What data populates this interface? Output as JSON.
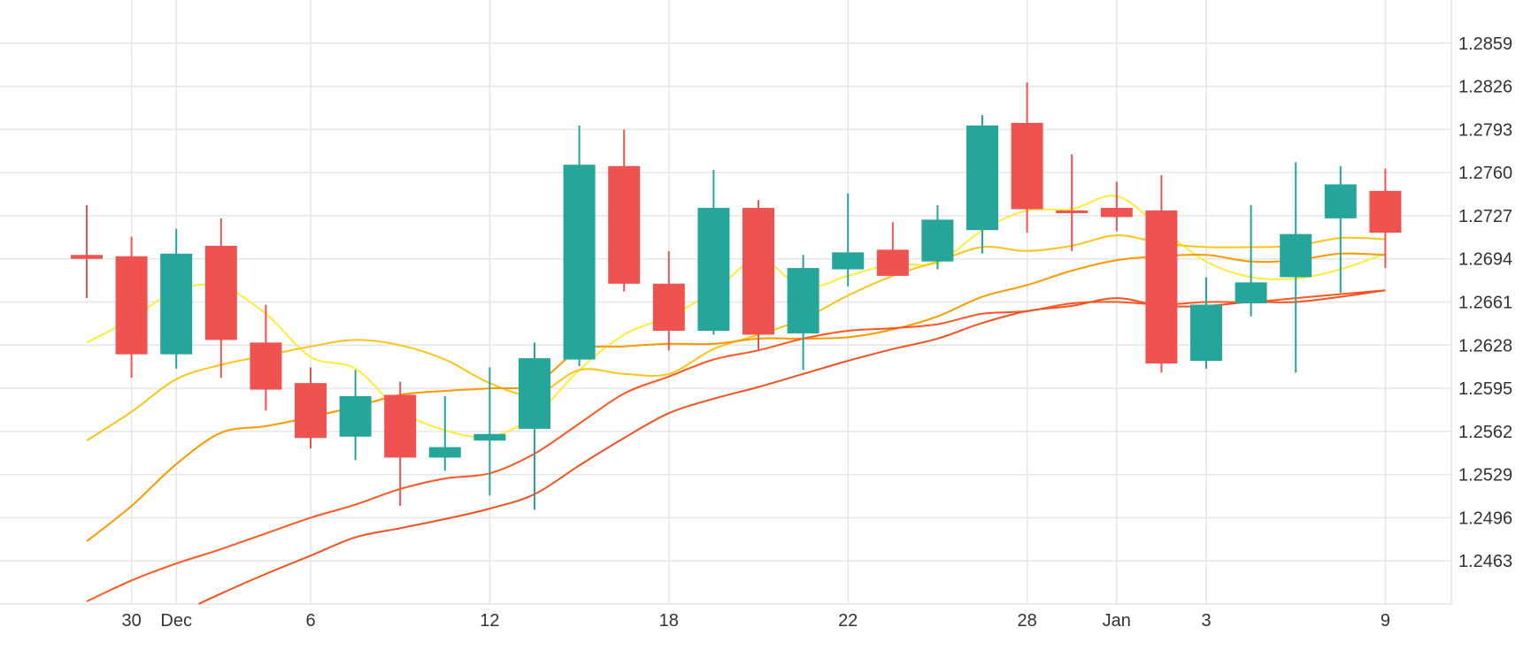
{
  "chart_data": {
    "type": "candlestick",
    "title": "",
    "xlabel": "",
    "ylabel": "",
    "ylim": [
      1.243,
      1.2892
    ],
    "yticks": [
      1.2463,
      1.2496,
      1.2529,
      1.2562,
      1.2595,
      1.2628,
      1.2661,
      1.2694,
      1.2727,
      1.276,
      1.2793,
      1.2826,
      1.2859
    ],
    "ytick_labels": [
      "1.2463",
      "1.2496",
      "1.2529",
      "1.2562",
      "1.2595",
      "1.2628",
      "1.2661",
      "1.2694",
      "1.2727",
      "1.2760",
      "1.2793",
      "1.2826",
      "1.2859"
    ],
    "xticks": [
      {
        "label": "30",
        "pos": 1
      },
      {
        "label": "Dec",
        "pos": 2
      },
      {
        "label": "6",
        "pos": 5
      },
      {
        "label": "12",
        "pos": 9
      },
      {
        "label": "18",
        "pos": 13
      },
      {
        "label": "22",
        "pos": 17
      },
      {
        "label": "28",
        "pos": 21
      },
      {
        "label": "Jan",
        "pos": 23
      },
      {
        "label": "3",
        "pos": 25
      },
      {
        "label": "9",
        "pos": 29
      }
    ],
    "x_positions": [
      0,
      1,
      2,
      3,
      4,
      5,
      6,
      7,
      8,
      9,
      10,
      11,
      12,
      13,
      14,
      15,
      16,
      17,
      18,
      19,
      20,
      21,
      22,
      23,
      24,
      25,
      26,
      27,
      28,
      29
    ],
    "candles": [
      {
        "open": 1.2697,
        "high": 1.2735,
        "low": 1.2664,
        "close": 1.2694
      },
      {
        "open": 1.2696,
        "high": 1.2711,
        "low": 1.2603,
        "close": 1.2621
      },
      {
        "open": 1.2621,
        "high": 1.2717,
        "low": 1.261,
        "close": 1.2698
      },
      {
        "open": 1.2704,
        "high": 1.2725,
        "low": 1.2603,
        "close": 1.2632
      },
      {
        "open": 1.263,
        "high": 1.2659,
        "low": 1.2578,
        "close": 1.2594
      },
      {
        "open": 1.2599,
        "high": 1.2611,
        "low": 1.2549,
        "close": 1.2557
      },
      {
        "open": 1.2558,
        "high": 1.2609,
        "low": 1.254,
        "close": 1.2589
      },
      {
        "open": 1.259,
        "high": 1.26,
        "low": 1.2505,
        "close": 1.2542
      },
      {
        "open": 1.2542,
        "high": 1.2589,
        "low": 1.2532,
        "close": 1.255
      },
      {
        "open": 1.2555,
        "high": 1.2611,
        "low": 1.2513,
        "close": 1.256
      },
      {
        "open": 1.2564,
        "high": 1.263,
        "low": 1.2502,
        "close": 1.2618
      },
      {
        "open": 1.2617,
        "high": 1.2796,
        "low": 1.2612,
        "close": 1.2766
      },
      {
        "open": 1.2765,
        "high": 1.2793,
        "low": 1.2669,
        "close": 1.2675
      },
      {
        "open": 1.2675,
        "high": 1.27,
        "low": 1.2624,
        "close": 1.2639
      },
      {
        "open": 1.2639,
        "high": 1.2762,
        "low": 1.2636,
        "close": 1.2733
      },
      {
        "open": 1.2733,
        "high": 1.2739,
        "low": 1.2624,
        "close": 1.2636
      },
      {
        "open": 1.2637,
        "high": 1.2697,
        "low": 1.2609,
        "close": 1.2687
      },
      {
        "open": 1.2686,
        "high": 1.2744,
        "low": 1.2673,
        "close": 1.2699
      },
      {
        "open": 1.2701,
        "high": 1.2722,
        "low": 1.2683,
        "close": 1.2681
      },
      {
        "open": 1.2692,
        "high": 1.2735,
        "low": 1.2686,
        "close": 1.2724
      },
      {
        "open": 1.2716,
        "high": 1.2804,
        "low": 1.2698,
        "close": 1.2796
      },
      {
        "open": 1.2798,
        "high": 1.2829,
        "low": 1.2714,
        "close": 1.2732
      },
      {
        "open": 1.2731,
        "high": 1.2774,
        "low": 1.27,
        "close": 1.2729
      },
      {
        "open": 1.2733,
        "high": 1.2753,
        "low": 1.2715,
        "close": 1.2726
      },
      {
        "open": 1.2731,
        "high": 1.2758,
        "low": 1.2607,
        "close": 1.2614
      },
      {
        "open": 1.2616,
        "high": 1.268,
        "low": 1.261,
        "close": 1.2659
      },
      {
        "open": 1.266,
        "high": 1.2735,
        "low": 1.265,
        "close": 1.2676
      },
      {
        "open": 1.268,
        "high": 1.2768,
        "low": 1.2607,
        "close": 1.2713
      },
      {
        "open": 1.2725,
        "high": 1.2765,
        "low": 1.2668,
        "close": 1.2751
      },
      {
        "open": 1.2746,
        "high": 1.2763,
        "low": 1.2687,
        "close": 1.2714
      }
    ],
    "moving_averages": [
      {
        "color": "#ffeb3b",
        "x": [
          0,
          1,
          2,
          3,
          4,
          5,
          6,
          7,
          8,
          9,
          10,
          11,
          12,
          13,
          14,
          15,
          16,
          17,
          18,
          19,
          20,
          21,
          22,
          23,
          24,
          25,
          26,
          27,
          28,
          29
        ],
        "values": [
          1.263,
          1.2648,
          1.267,
          1.2673,
          1.2652,
          1.2619,
          1.261,
          1.2578,
          1.2563,
          1.2558,
          1.2574,
          1.2609,
          1.2636,
          1.265,
          1.2669,
          1.2694,
          1.2672,
          1.2681,
          1.269,
          1.2691,
          1.2716,
          1.2731,
          1.2732,
          1.2742,
          1.2717,
          1.2692,
          1.268,
          1.2679,
          1.2686,
          1.2698
        ]
      },
      {
        "color": "#fcc419",
        "x": [
          0,
          1,
          2,
          3,
          4,
          5,
          6,
          7,
          8,
          9,
          10,
          11,
          12,
          13,
          14,
          15,
          16,
          17,
          18,
          19,
          20,
          21,
          22,
          23,
          24,
          25,
          26,
          27,
          28,
          29
        ],
        "values": [
          1.2555,
          1.2577,
          1.2602,
          1.2613,
          1.262,
          1.2627,
          1.2632,
          1.2628,
          1.2617,
          1.2599,
          1.259,
          1.2609,
          1.2606,
          1.2606,
          1.2625,
          1.2636,
          1.2648,
          1.2666,
          1.2681,
          1.2692,
          1.2703,
          1.27,
          1.2704,
          1.2712,
          1.2706,
          1.2703,
          1.2703,
          1.2704,
          1.271,
          1.2709
        ]
      },
      {
        "color": "#ff9800",
        "x": [
          0,
          1,
          2,
          3,
          4,
          5,
          6,
          7,
          8,
          9,
          10,
          11,
          12,
          13,
          14,
          15,
          16,
          17,
          18,
          19,
          20,
          21,
          22,
          23,
          24,
          25,
          26,
          27,
          28,
          29
        ],
        "values": [
          1.2478,
          1.2505,
          1.2537,
          1.2561,
          1.2566,
          1.2573,
          1.2581,
          1.259,
          1.2593,
          1.2595,
          1.2598,
          1.2624,
          1.2627,
          1.2629,
          1.2629,
          1.2633,
          1.2633,
          1.2634,
          1.264,
          1.265,
          1.2665,
          1.2674,
          1.2685,
          1.2693,
          1.2696,
          1.2697,
          1.2692,
          1.2693,
          1.2698,
          1.2697
        ]
      },
      {
        "color": "#ff5722",
        "x": [
          0,
          1,
          2,
          3,
          4,
          5,
          6,
          7,
          8,
          9,
          10,
          11,
          12,
          13,
          14,
          15,
          16,
          17,
          18,
          19,
          20,
          21,
          22,
          23,
          24,
          25,
          26,
          27,
          28,
          29
        ],
        "values": [
          1.2432,
          1.2448,
          1.2461,
          1.2472,
          1.2484,
          1.2496,
          1.2506,
          1.2518,
          1.2526,
          1.253,
          1.2545,
          1.2568,
          1.2591,
          1.2604,
          1.2617,
          1.2624,
          1.2633,
          1.2639,
          1.2641,
          1.2644,
          1.2652,
          1.2654,
          1.266,
          1.2661,
          1.2659,
          1.2661,
          1.2661,
          1.2664,
          1.2667,
          1.267
        ]
      },
      {
        "color": "#f4511e",
        "x": [
          2.5,
          3,
          4,
          5,
          6,
          7,
          8,
          9,
          10,
          11,
          12,
          13,
          14,
          15,
          16,
          17,
          18,
          19,
          20,
          21,
          22,
          23,
          24,
          25,
          26,
          27,
          28,
          29
        ],
        "values": [
          1.243,
          1.2438,
          1.2453,
          1.2467,
          1.2481,
          1.2488,
          1.2495,
          1.2503,
          1.2514,
          1.2536,
          1.2557,
          1.2576,
          1.2587,
          1.2596,
          1.2606,
          1.2616,
          1.2625,
          1.2633,
          1.2645,
          1.2654,
          1.2658,
          1.2664,
          1.2658,
          1.2658,
          1.2661,
          1.2661,
          1.2665,
          1.267
        ]
      }
    ],
    "up_color": "#26a69a",
    "down_color": "#ef5350",
    "grid": true,
    "legend": "none"
  }
}
